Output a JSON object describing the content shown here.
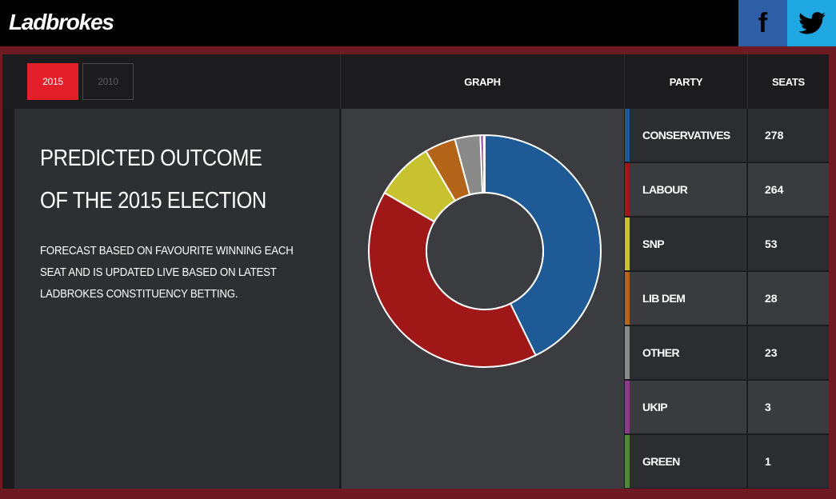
{
  "brand": {
    "logo": "Ladbrokes"
  },
  "social": {
    "facebook_glyph": "f",
    "twitter_icon": "twitter-bird-icon"
  },
  "tabs": {
    "year_active": "2015",
    "year_inactive": "2010"
  },
  "headers": {
    "graph": "GRAPH",
    "party": "PARTY",
    "seats": "SEATS"
  },
  "intro": {
    "title": "PREDICTED OUTCOME OF THE 2015 ELECTION",
    "description": "FORECAST BASED ON FAVOURITE WINNING EACH SEAT AND IS UPDATED LIVE BASED ON LATEST LADBROKES CONSTITUENCY BETTING."
  },
  "colors": {
    "conservatives": "#1e5a95",
    "labour": "#a01717",
    "snp": "#c9c230",
    "libdem": "#b46418",
    "other": "#8a8a8a",
    "ukip": "#8c3a8c",
    "green": "#4b8a3a"
  },
  "parties": [
    {
      "name": "CONSERVATIVES",
      "seats": "278",
      "color": "#1e5a95"
    },
    {
      "name": "LABOUR",
      "seats": "264",
      "color": "#a01717"
    },
    {
      "name": "SNP",
      "seats": "53",
      "color": "#c9c230"
    },
    {
      "name": "LIB DEM",
      "seats": "28",
      "color": "#b46418"
    },
    {
      "name": "OTHER",
      "seats": "23",
      "color": "#8a8a8a"
    },
    {
      "name": "UKIP",
      "seats": "3",
      "color": "#8c3a8c"
    },
    {
      "name": "GREEN",
      "seats": "1",
      "color": "#4b8a3a"
    }
  ],
  "chart_data": {
    "type": "pie",
    "categories": [
      "CONSERVATIVES",
      "LABOUR",
      "SNP",
      "LIB DEM",
      "OTHER",
      "UKIP",
      "GREEN"
    ],
    "values": [
      278,
      264,
      53,
      28,
      23,
      3,
      1
    ],
    "colors": [
      "#1e5a95",
      "#a01717",
      "#c9c230",
      "#b46418",
      "#8a8a8a",
      "#8c3a8c",
      "#4b8a3a"
    ],
    "donut": true,
    "start": "top",
    "direction": "clockwise"
  }
}
